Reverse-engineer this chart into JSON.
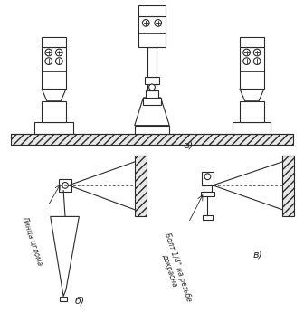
{
  "background_color": "#ffffff",
  "line_color": "#2a2a2a",
  "label_a": "а)",
  "label_b": "б)",
  "label_v": "в)",
  "text_left": "Линца цглома",
  "text_right": "Болт 1/4\" на резьбе\nдокрасна",
  "figsize": [
    3.36,
    3.56
  ],
  "dpi": 100
}
